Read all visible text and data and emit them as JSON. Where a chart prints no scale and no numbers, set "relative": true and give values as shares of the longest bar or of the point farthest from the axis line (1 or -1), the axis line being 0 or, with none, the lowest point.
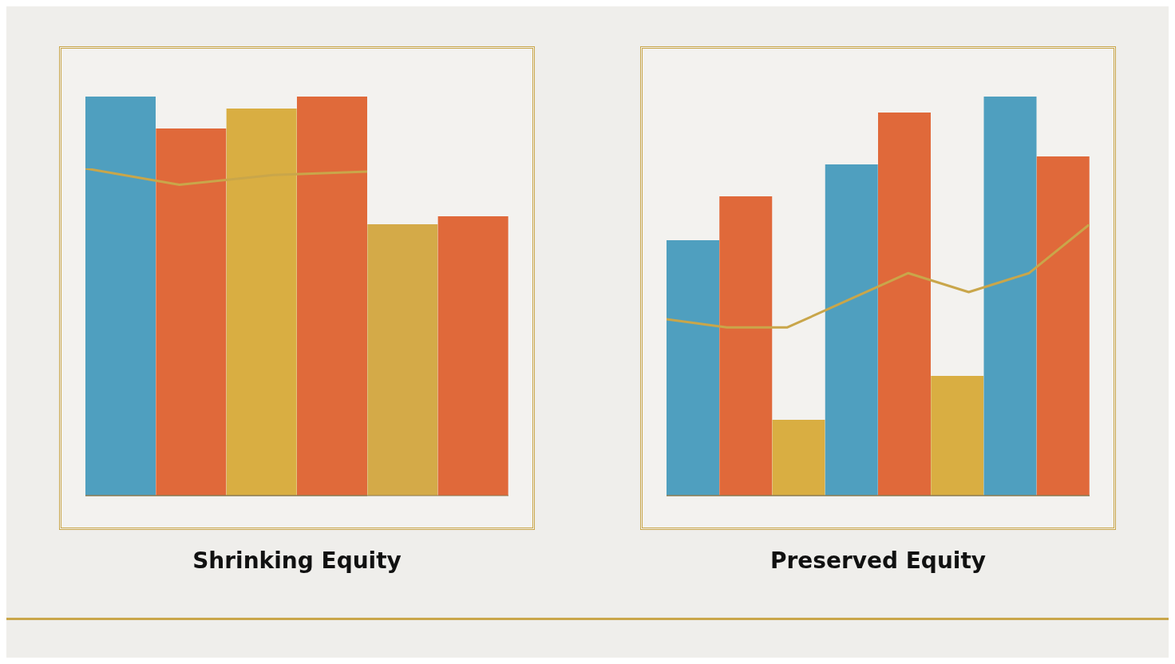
{
  "chart_data": [
    {
      "type": "bar",
      "title": "Shrinking Equity",
      "relative": true,
      "categories": [
        null,
        null,
        null,
        null,
        null,
        null
      ],
      "series": [
        {
          "colors": [
            "#4f9fbf",
            "#e0693a",
            "#d9ae42",
            "#e06a3a",
            "#d4aa48",
            "#e0693a"
          ],
          "values": [
            1,
            0.92,
            0.97,
            1.0,
            0.68,
            0.7
          ]
        }
      ],
      "legend": false
    },
    {
      "type": "line",
      "relative": true,
      "categories": [
        null,
        null,
        null,
        null
      ],
      "series": [
        {
          "color": "#c9a64a",
          "values": [
            1,
            0.95,
            0.98,
            0.99
          ]
        }
      ],
      "marker": "none",
      "line_style": "solid",
      "legend": false
    },
    {
      "type": "bar",
      "title": "Preserved Equity",
      "relative": true,
      "categories": [
        null,
        null,
        null,
        null,
        null,
        null,
        null,
        null
      ],
      "series": [
        {
          "colors": [
            "#4f9fbf",
            "#e0693a",
            "#d9ae42",
            "#4f9fbf",
            "#e0693a",
            "#d9ae42",
            "#4f9fbf",
            "#e0693a"
          ],
          "values": [
            0.64,
            0.75,
            0.19,
            0.83,
            0.96,
            0.3,
            1,
            0.85
          ]
        }
      ],
      "legend": false
    },
    {
      "type": "line",
      "relative": true,
      "categories": [
        null,
        null,
        null,
        null,
        null,
        null,
        null,
        null
      ],
      "series": [
        {
          "color": "#c9a64a",
          "values": [
            0.65,
            0.62,
            0.62,
            0.72,
            0.82,
            0.75,
            0.82,
            1
          ]
        }
      ],
      "marker": "none",
      "line_style": "solid",
      "legend": false
    }
  ]
}
